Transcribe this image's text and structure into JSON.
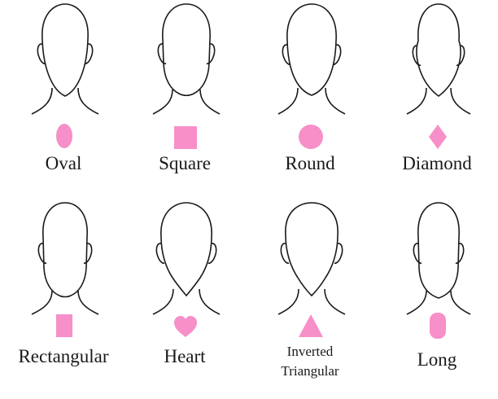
{
  "shapes": [
    {
      "label": "Oval",
      "icon": "oval-icon"
    },
    {
      "label": "Square",
      "icon": "square-icon"
    },
    {
      "label": "Round",
      "icon": "circle-icon"
    },
    {
      "label": "Diamond",
      "icon": "diamond-icon"
    },
    {
      "label": "Rectangular",
      "icon": "rectangle-icon"
    },
    {
      "label": "Heart",
      "icon": "heart-icon"
    },
    {
      "label_line1": "Inverted",
      "label_line2": "Triangular",
      "icon": "triangle-icon"
    },
    {
      "label": "Long",
      "icon": "rounded-rectangle-icon"
    }
  ],
  "colors": {
    "icon_fill": "#f78fc8",
    "outline": "#1a1a1a",
    "background": "#ffffff"
  }
}
